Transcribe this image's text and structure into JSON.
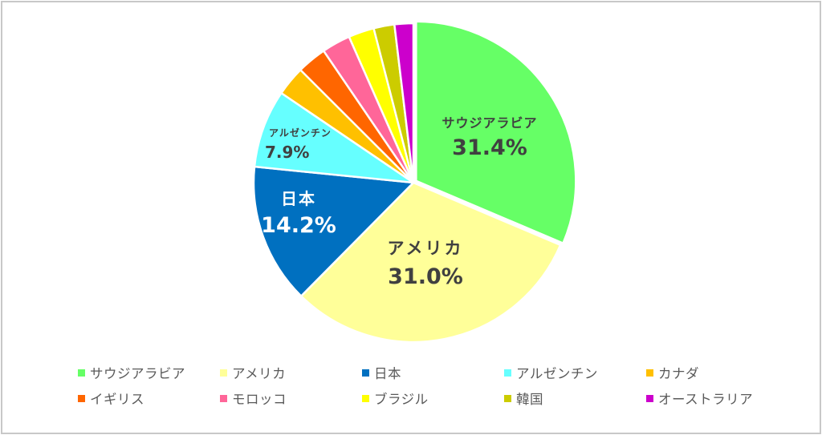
{
  "chart_data": {
    "type": "pie",
    "title": "",
    "start_angle_deg": 0,
    "direction": "clockwise",
    "categories": [
      "サウジアラビア",
      "アメリカ",
      "日本",
      "アルゼンチン",
      "カナダ",
      "イギリス",
      "モロッコ",
      "ブラジル",
      "韓国",
      "オーストラリア"
    ],
    "values": [
      31.4,
      31.0,
      14.2,
      7.9,
      3.0,
      3.0,
      2.9,
      2.6,
      2.1,
      1.9
    ],
    "colors": [
      "#66ff66",
      "#ffff99",
      "#0070c0",
      "#66ffff",
      "#ffc000",
      "#ff6600",
      "#ff6699",
      "#ffff00",
      "#cccc00",
      "#cc00cc"
    ],
    "exploded": [
      "サウジアラビア"
    ],
    "data_labels": [
      {
        "category": "サウジアラビア",
        "name": "サウジアラビア",
        "pct": "31.4%",
        "color": "#404040"
      },
      {
        "category": "アメリカ",
        "name": "アメリカ",
        "pct": "31.0%",
        "color": "#404040"
      },
      {
        "category": "日本",
        "name": "日本",
        "pct": "14.2%",
        "color": "#ffffff"
      },
      {
        "category": "アルゼンチン",
        "name": "アルゼンチン",
        "pct": "7.9%",
        "color": "#404040"
      }
    ],
    "legend_position": "bottom"
  },
  "legend": {
    "items": [
      {
        "label": "サウジアラビア",
        "color": "#66ff66"
      },
      {
        "label": "アメリカ",
        "color": "#ffff99"
      },
      {
        "label": "日本",
        "color": "#0070c0"
      },
      {
        "label": "アルゼンチン",
        "color": "#66ffff"
      },
      {
        "label": "カナダ",
        "color": "#ffc000"
      },
      {
        "label": "イギリス",
        "color": "#ff6600"
      },
      {
        "label": "モロッコ",
        "color": "#ff6699"
      },
      {
        "label": "ブラジル",
        "color": "#ffff00"
      },
      {
        "label": "韓国",
        "color": "#cccc00"
      },
      {
        "label": "オーストラリア",
        "color": "#cc00cc"
      }
    ]
  }
}
